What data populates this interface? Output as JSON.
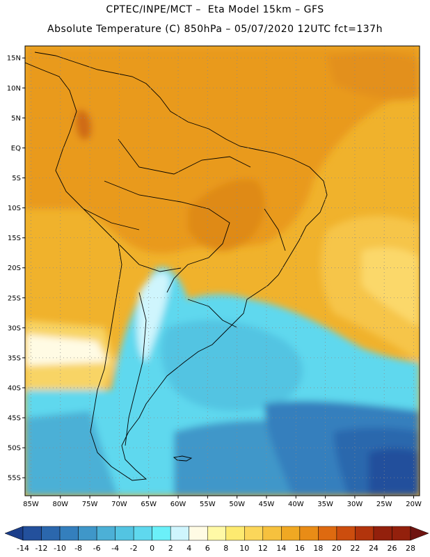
{
  "header": {
    "line1": "CPTEC/INPE/MCT –  Eta Model 15km – GFS",
    "line2": "Absolute Temperature (C) 850hPa – 05/07/2020 12UTC fct=137h"
  },
  "map": {
    "lat_labels": [
      "15N",
      "10N",
      "5N",
      "EQ",
      "5S",
      "10S",
      "15S",
      "20S",
      "25S",
      "30S",
      "35S",
      "40S",
      "45S",
      "50S",
      "55S"
    ],
    "lat_values": [
      15,
      10,
      5,
      0,
      -5,
      -10,
      -15,
      -20,
      -25,
      -30,
      -35,
      -40,
      -45,
      -50,
      -55
    ],
    "lon_labels": [
      "85W",
      "80W",
      "75W",
      "70W",
      "65W",
      "60W",
      "55W",
      "50W",
      "45W",
      "40W",
      "35W",
      "30W",
      "25W",
      "20W"
    ],
    "lon_values": [
      -85,
      -80,
      -75,
      -70,
      -65,
      -60,
      -55,
      -50,
      -45,
      -40,
      -35,
      -30,
      -25,
      -20
    ],
    "lon_range": [
      -86,
      -19
    ],
    "lat_range": [
      -58,
      17
    ]
  },
  "legend": {
    "labels": [
      "-14",
      "-12",
      "-10",
      "-8",
      "-6",
      "-4",
      "-2",
      "0",
      "2",
      "4",
      "6",
      "8",
      "10",
      "12",
      "14",
      "16",
      "18",
      "20",
      "22",
      "24",
      "26",
      "28"
    ],
    "colors": [
      "#1b3e8a",
      "#23509c",
      "#2b67ad",
      "#347fbd",
      "#3f97c9",
      "#4cb0d6",
      "#53c4e2",
      "#5fd8ee",
      "#6bf0f9",
      "#cff5fd",
      "#fffbe4",
      "#fff9a6",
      "#fdea70",
      "#fbd65a",
      "#f6c13e",
      "#f0a823",
      "#e98c16",
      "#de6a10",
      "#cc4d0e",
      "#b2340c",
      "#93200c",
      "#6f1410"
    ]
  }
}
